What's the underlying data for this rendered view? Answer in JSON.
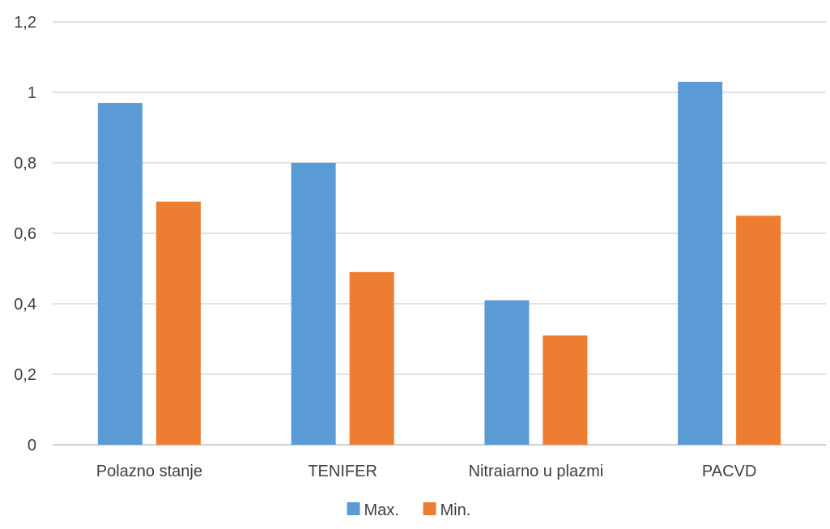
{
  "chart_data": {
    "type": "bar",
    "title": "",
    "xlabel": "",
    "ylabel": "",
    "categories": [
      "Polazno stanje",
      "TENIFER",
      "Nitraiarno u plazmi",
      "PACVD"
    ],
    "series": [
      {
        "name": "Max.",
        "color": "#5b9bd5",
        "values": [
          0.97,
          0.8,
          0.41,
          1.03
        ]
      },
      {
        "name": "Min.",
        "color": "#ed7d31",
        "values": [
          0.69,
          0.49,
          0.31,
          0.65
        ]
      }
    ],
    "ylim": [
      0,
      1.2
    ],
    "yticks": [
      "0",
      "0,2",
      "0,4",
      "0,6",
      "0,8",
      "1",
      "1,2"
    ],
    "ytick_values": [
      0,
      0.2,
      0.4,
      0.6,
      0.8,
      1.0,
      1.2
    ],
    "grid": true,
    "legend_position": "bottom"
  }
}
